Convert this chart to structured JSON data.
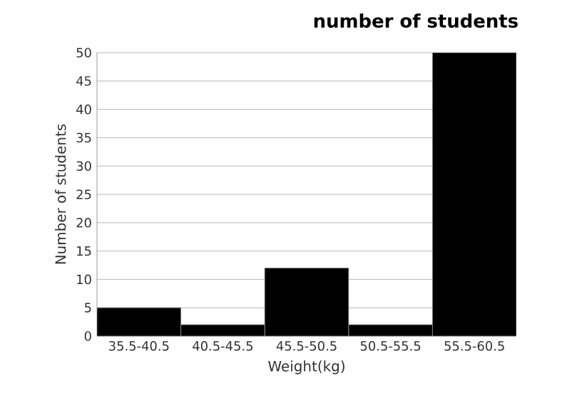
{
  "chart_data": {
    "type": "bar",
    "title": "number of students",
    "xlabel": "Weight(kg)",
    "ylabel": "Number of students",
    "categories": [
      "35.5-40.5",
      "40.5-45.5",
      "45.5-50.5",
      "50.5-55.5",
      "55.5-60.5"
    ],
    "values": [
      5,
      2,
      12,
      2,
      50
    ],
    "color": "#000000",
    "ylim": [
      0,
      50
    ],
    "yticks": [
      0,
      5,
      10,
      15,
      20,
      25,
      30,
      35,
      40,
      45,
      50
    ],
    "grid": "y"
  }
}
